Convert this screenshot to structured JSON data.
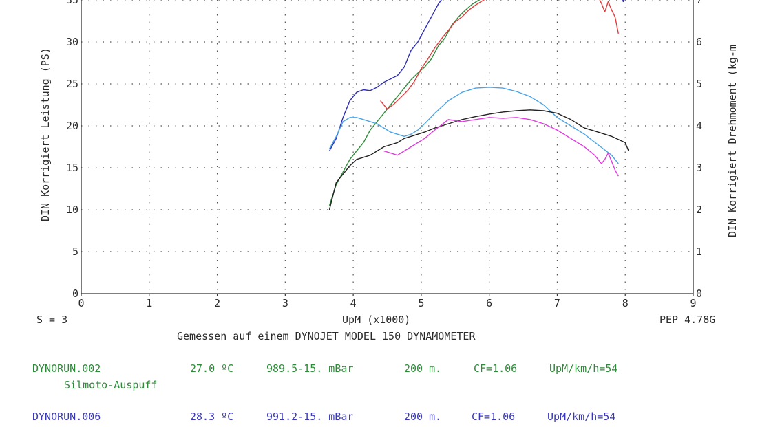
{
  "chart_data": {
    "type": "line",
    "xlabel": "UpM (x1000)",
    "ylabel": "DIN Korrigiert Leistung (PS)",
    "ylabel_right": "DIN Korrigiert Drehmoment (kg-m",
    "xlim": [
      0,
      9
    ],
    "ylim": [
      0,
      35
    ],
    "ylim_right": [
      0,
      7
    ],
    "x_ticks": [
      "0",
      "1",
      "2",
      "3",
      "4",
      "5",
      "6",
      "7",
      "8",
      "9"
    ],
    "y_ticks": [
      "0",
      "5",
      "10",
      "15",
      "20",
      "25",
      "30",
      "35"
    ],
    "y_ticks_right": [
      "0",
      "1",
      "2",
      "3",
      "4",
      "5",
      "6",
      "7"
    ],
    "grid": true,
    "series": [
      {
        "color": "#2e2eb8",
        "kind": "power",
        "x": [
          3.65,
          3.75,
          3.85,
          3.95,
          4.05,
          4.15,
          4.25,
          4.35,
          4.45,
          4.55,
          4.65,
          4.75,
          4.85,
          4.95,
          5.05,
          5.15,
          5.25,
          5.35
        ],
        "y": [
          17.0,
          18.5,
          21.0,
          23.0,
          24.0,
          24.3,
          24.2,
          24.6,
          25.2,
          25.6,
          26.0,
          27.0,
          29.0,
          30.0,
          31.5,
          33.0,
          34.5,
          35.6
        ]
      },
      {
        "color": "#2e8b3a",
        "kind": "power",
        "x": [
          3.65,
          3.75,
          3.85,
          3.95,
          4.05,
          4.15,
          4.25,
          4.35,
          4.45,
          4.55,
          4.65,
          4.75,
          4.85,
          4.95,
          5.05,
          5.15,
          5.25,
          5.35,
          5.45,
          5.55,
          5.65,
          5.75,
          5.85,
          5.95
        ],
        "y": [
          10.5,
          13.0,
          14.5,
          16.0,
          17.0,
          18.0,
          19.5,
          20.5,
          21.5,
          22.5,
          23.5,
          24.5,
          25.5,
          26.3,
          27.0,
          28.0,
          29.5,
          30.5,
          32.0,
          33.0,
          33.8,
          34.5,
          35.0,
          35.5
        ]
      },
      {
        "color": "#e23a3a",
        "kind": "power",
        "x": [
          4.4,
          4.5,
          4.6,
          4.7,
          4.8,
          4.9,
          5.0,
          5.1,
          5.2,
          5.3,
          5.4,
          5.5,
          5.6,
          5.7,
          5.8,
          5.9,
          6.0
        ],
        "y": [
          23.0,
          22.0,
          22.6,
          23.4,
          24.2,
          25.3,
          26.8,
          28.0,
          29.3,
          30.4,
          31.4,
          32.4,
          33.0,
          33.8,
          34.4,
          34.9,
          35.4
        ]
      },
      {
        "color": "#e23a3a",
        "kind": "power",
        "x": [
          7.6,
          7.65,
          7.7,
          7.75,
          7.8,
          7.85,
          7.9
        ],
        "y": [
          35.4,
          34.6,
          33.6,
          34.8,
          33.8,
          33.0,
          31.0
        ]
      },
      {
        "color": "#2e2eb8",
        "kind": "power",
        "x": [
          7.95,
          7.97,
          8.0
        ],
        "y": [
          35.6,
          34.8,
          35.6
        ]
      },
      {
        "color": "#4aa3e6",
        "kind": "torque",
        "x": [
          3.65,
          3.75,
          3.85,
          3.95,
          4.05,
          4.15,
          4.25,
          4.35,
          4.45,
          4.55,
          4.65,
          4.75,
          4.85,
          4.95,
          5.05,
          5.2,
          5.4,
          5.6,
          5.8,
          6.0,
          6.2,
          6.4,
          6.6,
          6.8,
          7.0,
          7.2,
          7.4,
          7.6,
          7.8,
          7.9
        ],
        "y": [
          3.45,
          3.75,
          4.1,
          4.2,
          4.2,
          4.15,
          4.1,
          4.05,
          3.95,
          3.85,
          3.8,
          3.75,
          3.8,
          3.9,
          4.05,
          4.3,
          4.6,
          4.8,
          4.9,
          4.92,
          4.9,
          4.82,
          4.7,
          4.5,
          4.2,
          4.0,
          3.8,
          3.55,
          3.3,
          3.1
        ]
      },
      {
        "color": "#222222",
        "kind": "torque",
        "x": [
          3.65,
          3.75,
          3.85,
          3.95,
          4.05,
          4.15,
          4.25,
          4.35,
          4.45,
          4.55,
          4.65,
          4.75,
          4.85,
          4.95,
          5.05,
          5.2,
          5.4,
          5.6,
          5.8,
          6.0,
          6.2,
          6.4,
          6.6,
          6.8,
          7.0,
          7.2,
          7.4,
          7.6,
          7.8,
          8.0,
          8.05
        ],
        "y": [
          2.0,
          2.65,
          2.85,
          3.05,
          3.2,
          3.25,
          3.3,
          3.4,
          3.5,
          3.55,
          3.6,
          3.7,
          3.75,
          3.8,
          3.85,
          3.95,
          4.05,
          4.15,
          4.22,
          4.28,
          4.33,
          4.36,
          4.38,
          4.36,
          4.3,
          4.15,
          3.95,
          3.85,
          3.75,
          3.6,
          3.4
        ]
      },
      {
        "color": "#e03ae0",
        "kind": "torque",
        "x": [
          4.45,
          4.55,
          4.65,
          4.75,
          4.85,
          4.95,
          5.05,
          5.2,
          5.4,
          5.6,
          5.8,
          6.0,
          6.2,
          6.4,
          6.6,
          6.8,
          7.0,
          7.2,
          7.4,
          7.55,
          7.65,
          7.7,
          7.75,
          7.8,
          7.85,
          7.9
        ],
        "y": [
          3.4,
          3.35,
          3.3,
          3.4,
          3.5,
          3.6,
          3.7,
          3.9,
          4.15,
          4.1,
          4.15,
          4.2,
          4.18,
          4.2,
          4.15,
          4.05,
          3.9,
          3.7,
          3.5,
          3.3,
          3.1,
          3.2,
          3.35,
          3.15,
          2.95,
          2.8
        ]
      }
    ]
  },
  "labels": {
    "s_value": "S = 3",
    "pep": "PEP 4.78G",
    "caption": "Gemessen auf einem DYNOJET MODEL 150 DYNAMOMETER"
  },
  "runs": [
    {
      "color": "#2e8b3a",
      "name": "DYNORUN.002",
      "temp": "27.0 ºC",
      "pressure": "989.5-15. mBar",
      "altitude": "200 m.",
      "cf": "CF=1.06",
      "ratio": "UpM/km/h=54",
      "note": "Silmoto-Auspuff"
    },
    {
      "color": "#3a3ab8",
      "name": "DYNORUN.006",
      "temp": "28.3 ºC",
      "pressure": "991.2-15. mBar",
      "altitude": "200 m.",
      "cf": "CF=1.06",
      "ratio": "UpM/km/h=54"
    }
  ]
}
